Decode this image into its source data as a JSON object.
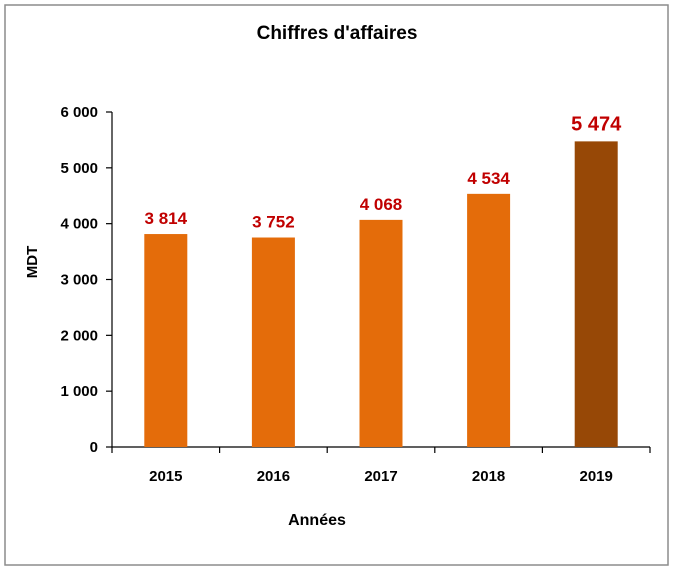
{
  "chart_data": {
    "type": "bar",
    "title": "Chiffres d'affaires",
    "xlabel": "Années",
    "ylabel": "MDT",
    "categories": [
      "2015",
      "2016",
      "2017",
      "2018",
      "2019"
    ],
    "values": [
      3814,
      3752,
      4068,
      4534,
      5474
    ],
    "value_labels": [
      "3 814",
      "3 752",
      "4 068",
      "4 534",
      "5 474"
    ],
    "ylim": [
      0,
      6000
    ],
    "yticks": [
      0,
      1000,
      2000,
      3000,
      4000,
      5000,
      6000
    ],
    "ytick_labels": [
      "0",
      "1 000",
      "2 000",
      "3 000",
      "4 000",
      "5 000",
      "6 000"
    ],
    "grid": false,
    "legend": "none",
    "colors": {
      "bar": "#E46C0A",
      "highlight_bar": "#974806",
      "value_label": "#C00000",
      "axis": "#000000",
      "border": "#8C8C8C"
    },
    "highlight_index": 4
  }
}
